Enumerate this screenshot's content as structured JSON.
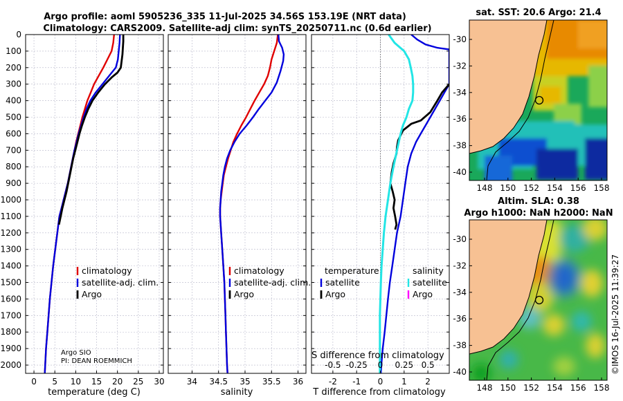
{
  "header": {
    "title_line1": "Argo profile: aoml 5905236_335 11-Jul-2025 34.56S 153.19E (NRT data)",
    "title_line2": "Climatology: CARS2009. Satellite-adj clim: synTS_20250711.nc (0.6d earlier)"
  },
  "colors": {
    "climatology": "#e00000",
    "satellite": "#0000dd",
    "argo": "#000000",
    "sat_salinity": "#22e5e5",
    "argo_salinity": "#ff00ff"
  },
  "depth_axis": {
    "ticks": [
      0,
      100,
      200,
      300,
      400,
      500,
      600,
      700,
      800,
      900,
      1000,
      1100,
      1200,
      1300,
      1400,
      1500,
      1600,
      1700,
      1800,
      1900,
      2000
    ],
    "range": [
      0,
      2050
    ]
  },
  "legend": {
    "climatology": "climatology",
    "satellite": "satellite-adj. clim.",
    "argo": "Argo"
  },
  "legend_diff": {
    "temperature": "temperature",
    "salinity": "salinity",
    "satellite": "satellite",
    "argo": "Argo"
  },
  "float_info": {
    "line1": "Argo SIO",
    "line2": "PI: DEAN ROEMMICH"
  },
  "s_diff_label": "S difference from climatology",
  "chart_data": [
    {
      "type": "line",
      "name": "temperature",
      "xlabel": "temperature (deg C)",
      "xlim": [
        -2,
        31
      ],
      "xticks": [
        0,
        5,
        10,
        15,
        20,
        25,
        30
      ],
      "ylim": [
        0,
        2050
      ],
      "series": [
        {
          "name": "climatology",
          "color": "#e00000",
          "width": 2.4,
          "points": [
            [
              19.2,
              0
            ],
            [
              19.0,
              50
            ],
            [
              18.6,
              100
            ],
            [
              17.6,
              150
            ],
            [
              16.6,
              200
            ],
            [
              15.5,
              250
            ],
            [
              14.4,
              300
            ],
            [
              13.6,
              350
            ],
            [
              12.8,
              400
            ],
            [
              12.2,
              450
            ],
            [
              11.6,
              500
            ],
            [
              11.1,
              550
            ],
            [
              10.6,
              600
            ],
            [
              10.1,
              650
            ],
            [
              9.7,
              700
            ],
            [
              9.3,
              750
            ],
            [
              8.9,
              800
            ],
            [
              8.5,
              850
            ],
            [
              8.1,
              900
            ],
            [
              7.6,
              950
            ],
            [
              7.1,
              1000
            ],
            [
              6.6,
              1050
            ],
            [
              6.1,
              1100
            ],
            [
              5.6,
              1200
            ],
            [
              5.1,
              1300
            ],
            [
              4.6,
              1400
            ],
            [
              4.2,
              1500
            ],
            [
              3.8,
              1600
            ],
            [
              3.5,
              1700
            ],
            [
              3.2,
              1800
            ],
            [
              2.9,
              1900
            ],
            [
              2.7,
              2000
            ],
            [
              2.6,
              2050
            ]
          ]
        },
        {
          "name": "satellite-adj. clim.",
          "color": "#0000dd",
          "width": 2.4,
          "points": [
            [
              20.6,
              0
            ],
            [
              20.5,
              50
            ],
            [
              20.3,
              100
            ],
            [
              20.1,
              150
            ],
            [
              19.6,
              200
            ],
            [
              18.0,
              250
            ],
            [
              16.4,
              300
            ],
            [
              14.8,
              350
            ],
            [
              13.5,
              400
            ],
            [
              12.6,
              450
            ],
            [
              11.9,
              500
            ],
            [
              11.3,
              550
            ],
            [
              10.7,
              600
            ],
            [
              10.2,
              650
            ],
            [
              9.7,
              700
            ],
            [
              9.3,
              750
            ],
            [
              8.9,
              800
            ],
            [
              8.5,
              850
            ],
            [
              8.1,
              900
            ],
            [
              7.6,
              950
            ],
            [
              7.1,
              1000
            ],
            [
              6.6,
              1050
            ],
            [
              6.1,
              1100
            ],
            [
              5.6,
              1200
            ],
            [
              5.1,
              1300
            ],
            [
              4.6,
              1400
            ],
            [
              4.2,
              1500
            ],
            [
              3.8,
              1600
            ],
            [
              3.5,
              1700
            ],
            [
              3.2,
              1800
            ],
            [
              2.9,
              1900
            ],
            [
              2.7,
              2000
            ],
            [
              2.6,
              2050
            ]
          ]
        },
        {
          "name": "Argo",
          "color": "#000000",
          "width": 2.8,
          "points": [
            [
              21.4,
              0
            ],
            [
              21.4,
              40
            ],
            [
              21.3,
              80
            ],
            [
              21.2,
              120
            ],
            [
              21.0,
              160
            ],
            [
              20.8,
              200
            ],
            [
              20.0,
              230
            ],
            [
              18.6,
              260
            ],
            [
              17.0,
              300
            ],
            [
              15.4,
              350
            ],
            [
              14.0,
              400
            ],
            [
              13.0,
              450
            ],
            [
              12.2,
              500
            ],
            [
              11.5,
              550
            ],
            [
              10.9,
              600
            ],
            [
              10.4,
              650
            ],
            [
              9.9,
              700
            ],
            [
              9.4,
              750
            ],
            [
              9.0,
              800
            ],
            [
              8.6,
              850
            ],
            [
              8.2,
              900
            ],
            [
              7.8,
              950
            ],
            [
              7.3,
              1000
            ],
            [
              6.8,
              1050
            ],
            [
              6.4,
              1100
            ],
            [
              6.0,
              1150
            ]
          ]
        }
      ]
    },
    {
      "type": "line",
      "name": "salinity",
      "xlabel": "salinity",
      "xlim": [
        33.55,
        36.15
      ],
      "xticks": [
        34,
        34.5,
        35,
        35.5,
        36
      ],
      "ylim": [
        0,
        2050
      ],
      "series": [
        {
          "name": "climatology",
          "color": "#e00000",
          "width": 2.4,
          "points": [
            [
              35.62,
              0
            ],
            [
              35.6,
              50
            ],
            [
              35.55,
              100
            ],
            [
              35.5,
              150
            ],
            [
              35.47,
              200
            ],
            [
              35.43,
              250
            ],
            [
              35.36,
              300
            ],
            [
              35.27,
              350
            ],
            [
              35.18,
              400
            ],
            [
              35.1,
              450
            ],
            [
              35.02,
              500
            ],
            [
              34.93,
              550
            ],
            [
              34.85,
              600
            ],
            [
              34.78,
              650
            ],
            [
              34.73,
              700
            ],
            [
              34.68,
              750
            ],
            [
              34.64,
              800
            ],
            [
              34.6,
              850
            ],
            [
              34.58,
              900
            ],
            [
              34.56,
              950
            ],
            [
              34.54,
              1000
            ],
            [
              34.53,
              1050
            ],
            [
              34.53,
              1100
            ],
            [
              34.55,
              1200
            ],
            [
              34.57,
              1300
            ],
            [
              34.59,
              1400
            ],
            [
              34.61,
              1500
            ],
            [
              34.62,
              1600
            ],
            [
              34.63,
              1700
            ],
            [
              34.64,
              1800
            ],
            [
              34.65,
              1900
            ],
            [
              34.66,
              2000
            ],
            [
              34.67,
              2050
            ]
          ]
        },
        {
          "name": "satellite-adj. clim.",
          "color": "#0000dd",
          "width": 2.4,
          "points": [
            [
              35.63,
              0
            ],
            [
              35.64,
              40
            ],
            [
              35.7,
              80
            ],
            [
              35.73,
              120
            ],
            [
              35.72,
              160
            ],
            [
              35.67,
              220
            ],
            [
              35.6,
              290
            ],
            [
              35.5,
              350
            ],
            [
              35.38,
              400
            ],
            [
              35.26,
              450
            ],
            [
              35.15,
              500
            ],
            [
              35.03,
              550
            ],
            [
              34.9,
              600
            ],
            [
              34.8,
              650
            ],
            [
              34.72,
              700
            ],
            [
              34.66,
              750
            ],
            [
              34.62,
              800
            ],
            [
              34.59,
              850
            ],
            [
              34.57,
              900
            ],
            [
              34.55,
              950
            ],
            [
              34.54,
              1000
            ],
            [
              34.53,
              1050
            ],
            [
              34.53,
              1100
            ],
            [
              34.55,
              1200
            ],
            [
              34.57,
              1300
            ],
            [
              34.59,
              1400
            ],
            [
              34.61,
              1500
            ],
            [
              34.62,
              1600
            ],
            [
              34.63,
              1700
            ],
            [
              34.64,
              1800
            ],
            [
              34.65,
              1900
            ],
            [
              34.66,
              2000
            ],
            [
              34.67,
              2050
            ]
          ]
        }
      ]
    },
    {
      "type": "line",
      "name": "difference",
      "xlabel": "T difference from climatology",
      "xlim": [
        -2.9,
        2.9
      ],
      "xticks": [
        -2,
        -1,
        0,
        1,
        2
      ],
      "s_xticks": [
        "-0.5",
        "-0.25",
        "0",
        "0.25",
        "0.5"
      ],
      "ylim": [
        0,
        2050
      ],
      "series": [
        {
          "name": "temperature satellite",
          "color": "#0000dd",
          "width": 2.4,
          "points": [
            [
              1.3,
              0
            ],
            [
              1.55,
              30
            ],
            [
              1.9,
              60
            ],
            [
              2.4,
              80
            ],
            [
              2.9,
              90
            ],
            [
              2.9,
              300
            ],
            [
              2.7,
              350
            ],
            [
              2.5,
              400
            ],
            [
              2.3,
              450
            ],
            [
              2.1,
              500
            ],
            [
              1.9,
              550
            ],
            [
              1.7,
              600
            ],
            [
              1.5,
              650
            ],
            [
              1.3,
              720
            ],
            [
              1.15,
              800
            ],
            [
              1.05,
              900
            ],
            [
              0.95,
              1000
            ],
            [
              0.85,
              1100
            ],
            [
              0.7,
              1200
            ],
            [
              0.6,
              1300
            ],
            [
              0.5,
              1400
            ],
            [
              0.4,
              1500
            ],
            [
              0.32,
              1600
            ],
            [
              0.25,
              1700
            ],
            [
              0.18,
              1800
            ],
            [
              0.1,
              1900
            ],
            [
              0.04,
              2000
            ],
            [
              0.02,
              2050
            ]
          ]
        },
        {
          "name": "temperature Argo",
          "color": "#000000",
          "width": 2.8,
          "points": [
            [
              2.9,
              300
            ],
            [
              2.6,
              350
            ],
            [
              2.4,
              400
            ],
            [
              2.1,
              470
            ],
            [
              1.7,
              520
            ],
            [
              1.3,
              540
            ],
            [
              0.95,
              580
            ],
            [
              0.75,
              640
            ],
            [
              0.7,
              680
            ],
            [
              0.68,
              720
            ],
            [
              0.55,
              780
            ],
            [
              0.48,
              830
            ],
            [
              0.42,
              900
            ],
            [
              0.52,
              950
            ],
            [
              0.6,
              1000
            ],
            [
              0.55,
              1050
            ],
            [
              0.62,
              1100
            ],
            [
              0.68,
              1150
            ],
            [
              0.62,
              1180
            ]
          ]
        },
        {
          "name": "salinity satellite",
          "color": "#22e5e5",
          "width": 3.0,
          "points": [
            [
              0.35,
              0
            ],
            [
              0.6,
              50
            ],
            [
              1.0,
              100
            ],
            [
              1.2,
              150
            ],
            [
              1.28,
              200
            ],
            [
              1.35,
              250
            ],
            [
              1.38,
              300
            ],
            [
              1.38,
              350
            ],
            [
              1.35,
              400
            ],
            [
              1.2,
              450
            ],
            [
              1.1,
              500
            ],
            [
              0.95,
              550
            ],
            [
              0.85,
              600
            ],
            [
              0.7,
              700
            ],
            [
              0.55,
              800
            ],
            [
              0.42,
              900
            ],
            [
              0.32,
              1000
            ],
            [
              0.22,
              1100
            ],
            [
              0.15,
              1200
            ],
            [
              0.1,
              1300
            ],
            [
              0.05,
              1400
            ],
            [
              0.02,
              1500
            ],
            [
              0.0,
              1600
            ],
            [
              -0.02,
              1700
            ],
            [
              -0.02,
              1800
            ],
            [
              -0.02,
              1900
            ],
            [
              -0.02,
              2000
            ],
            [
              -0.02,
              2050
            ]
          ]
        }
      ]
    }
  ],
  "maps": [
    {
      "name": "sst",
      "title": "sat. SST: 20.6 Argo: 21.4",
      "xticks": [
        "148",
        "150",
        "152",
        "154",
        "156",
        "158"
      ],
      "yticks": [
        "-30",
        "-32",
        "-34",
        "-36",
        "-38",
        "-40"
      ]
    },
    {
      "name": "sla",
      "title_line1": "Altim. SLA: 0.38",
      "title_line2": "Argo h1000: NaN h2000: NaN",
      "xticks": [
        "148",
        "150",
        "152",
        "154",
        "156",
        "158"
      ],
      "yticks": [
        "-30",
        "-32",
        "-34",
        "-36",
        "-38",
        "-40"
      ]
    }
  ],
  "timestamp": "©IMOS 16-Jul-2025 11:39:27"
}
